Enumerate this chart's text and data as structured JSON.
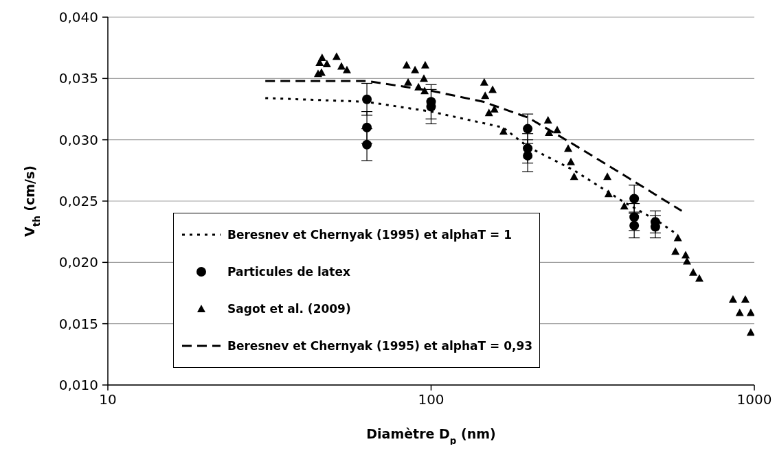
{
  "chart_data": {
    "type": "scatter",
    "xlabel": "Diamètre D$_{p}$ (nm)",
    "ylabel": "V$_{th}$ (cm/s)",
    "log": "x",
    "xlim": [
      10,
      1000
    ],
    "xticks": [
      10,
      100,
      1000
    ],
    "ylim": [
      0.01,
      0.04
    ],
    "yticks": [
      {
        "value": 0.01,
        "label": "0,010"
      },
      {
        "value": 0.015,
        "label": "0,015"
      },
      {
        "value": 0.02,
        "label": "0,020"
      },
      {
        "value": 0.025,
        "label": "0,025"
      },
      {
        "value": 0.03,
        "label": "0,030"
      },
      {
        "value": 0.035,
        "label": "0,035"
      },
      {
        "value": 0.04,
        "label": "0,040"
      }
    ],
    "grid": "y",
    "legend": "bottom left",
    "series": [
      {
        "name": "Beresnev et Chernyak (1995) et alphaT = 1",
        "type": "line",
        "color": "#000000",
        "marker": "none",
        "line_style": "dotted",
        "x": [
          30.7,
          63,
          100,
          167,
          200,
          277,
          396,
          508,
          575
        ],
        "values": [
          0.0334,
          0.0331,
          0.0323,
          0.031,
          0.0294,
          0.0275,
          0.0249,
          0.0233,
          0.0223
        ]
      },
      {
        "name": "Particules de latex",
        "color": "#000000",
        "marker": "circle",
        "x": [
          63.3,
          63.3,
          63.3,
          100,
          100,
          199,
          199,
          199,
          425,
          425,
          425,
          494,
          494
        ],
        "values": [
          0.0333,
          0.031,
          0.0296,
          0.0331,
          0.0327,
          0.0309,
          0.0293,
          0.0287,
          0.0252,
          0.0237,
          0.023,
          0.0233,
          0.0229
        ],
        "errors": [
          0.0013,
          0.0013,
          0.0013,
          0.0014,
          0.0014,
          0.0012,
          0.0012,
          0.0013,
          0.0011,
          0.0011,
          0.001,
          0.0009,
          0.0009
        ]
      },
      {
        "name": "Sagot et al. (2009)",
        "color": "#000000",
        "marker": "triangle",
        "x": [
          46.0,
          45.2,
          47.6,
          51.0,
          52.8,
          54.9,
          44.7,
          45.8,
          84.0,
          89.2,
          95.9,
          95.0,
          84.9,
          91.4,
          95.5,
          146,
          155,
          147,
          151,
          157,
          167.5,
          230,
          231.6,
          245.5,
          265.5,
          270.7,
          277,
          351,
          354,
          396,
          580,
          570,
          613,
          619,
          647,
          676,
          859,
          938,
          901,
          975,
          975
        ],
        "values": [
          0.0367,
          0.0363,
          0.0362,
          0.0368,
          0.036,
          0.0357,
          0.0354,
          0.0355,
          0.0361,
          0.0357,
          0.0361,
          0.035,
          0.0347,
          0.0343,
          0.034,
          0.0347,
          0.0341,
          0.0336,
          0.0322,
          0.0325,
          0.0307,
          0.0316,
          0.0306,
          0.0308,
          0.0293,
          0.0282,
          0.027,
          0.027,
          0.0256,
          0.0246,
          0.022,
          0.0209,
          0.0206,
          0.0201,
          0.0192,
          0.0187,
          0.017,
          0.017,
          0.0159,
          0.0159,
          0.0143
        ]
      },
      {
        "name": "Beresnev et Chernyak (1995) et alphaT = 0,93",
        "type": "line",
        "color": "#000000",
        "marker": "none",
        "line_style": "dashed",
        "x": [
          30.7,
          63,
          100,
          145,
          200,
          265,
          396,
          596
        ],
        "values": [
          0.0348,
          0.0348,
          0.034,
          0.0331,
          0.0318,
          0.0299,
          0.0271,
          0.0242
        ]
      }
    ]
  }
}
